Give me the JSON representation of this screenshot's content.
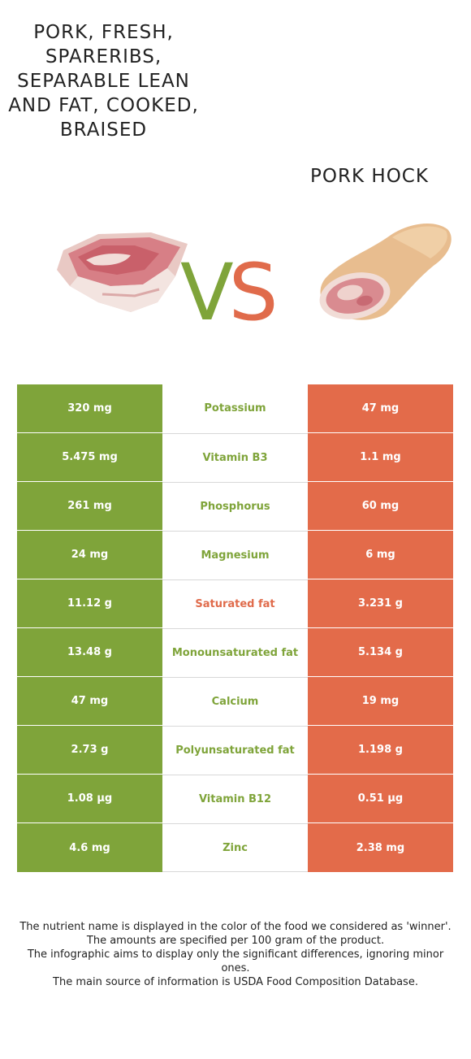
{
  "colors": {
    "left_winner": "#7fa43a",
    "right_winner": "#e06b4b"
  },
  "left_food": {
    "name": "Pork, fresh, spareribs, separable lean and fat, cooked, braised"
  },
  "right_food": {
    "name": "Pork hock"
  },
  "vs": {
    "v": "V",
    "s": "S"
  },
  "nutrients": [
    {
      "name": "Potassium",
      "left": "320 mg",
      "right": "47 mg",
      "winner": "left"
    },
    {
      "name": "Vitamin B3",
      "left": "5.475 mg",
      "right": "1.1 mg",
      "winner": "left"
    },
    {
      "name": "Phosphorus",
      "left": "261 mg",
      "right": "60 mg",
      "winner": "left"
    },
    {
      "name": "Magnesium",
      "left": "24 mg",
      "right": "6 mg",
      "winner": "left"
    },
    {
      "name": "Saturated fat",
      "left": "11.12 g",
      "right": "3.231 g",
      "winner": "right"
    },
    {
      "name": "Monounsaturated fat",
      "left": "13.48 g",
      "right": "5.134 g",
      "winner": "left"
    },
    {
      "name": "Calcium",
      "left": "47 mg",
      "right": "19 mg",
      "winner": "left"
    },
    {
      "name": "Polyunsaturated fat",
      "left": "2.73 g",
      "right": "1.198 g",
      "winner": "left"
    },
    {
      "name": "Vitamin B12",
      "left": "1.08 µg",
      "right": "0.51 µg",
      "winner": "left"
    },
    {
      "name": "Zinc",
      "left": "4.6 mg",
      "right": "2.38 mg",
      "winner": "left"
    }
  ],
  "footer": {
    "line1": "The nutrient name is displayed in the color of the food we considered as 'winner'.",
    "line2": "The amounts are specified per 100 gram of the product.",
    "line3": "The infographic aims to display only the significant differences, ignoring minor ones.",
    "line4": "The main source of information is USDA Food Composition Database."
  }
}
